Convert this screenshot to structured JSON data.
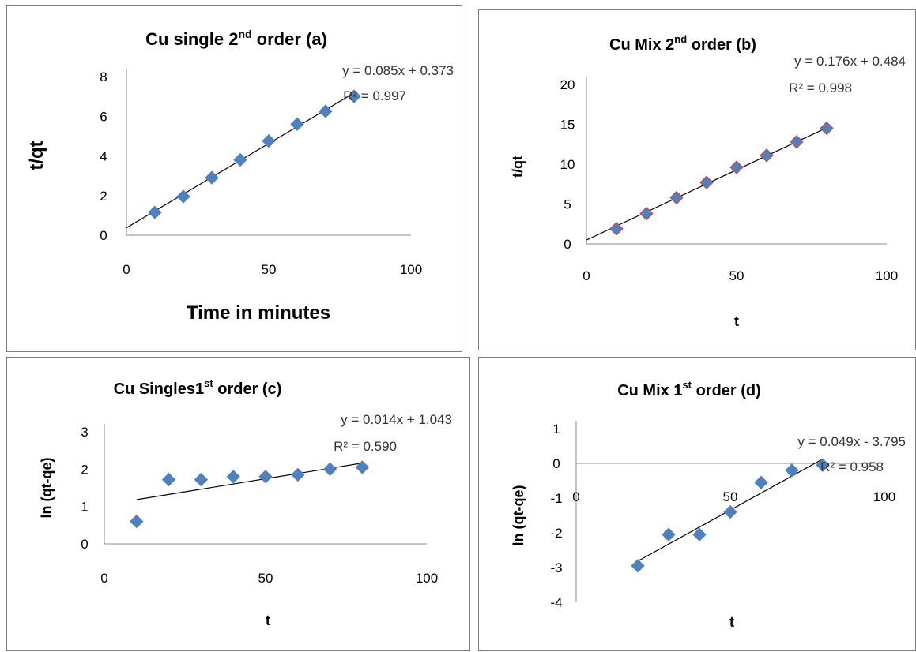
{
  "chart_data": [
    {
      "id": "a",
      "type": "scatter",
      "title": "Cu  single 2nd order (a)",
      "title_main": "Cu  single 2",
      "title_sup": "nd",
      "title_rest": " order (a)",
      "xlabel": "Time in minutes",
      "ylabel": "t/qt",
      "xlim": [
        0,
        100
      ],
      "ylim": [
        0,
        8
      ],
      "xticks": [
        0,
        50,
        100
      ],
      "yticks": [
        0,
        2,
        4,
        6,
        8
      ],
      "x": [
        10,
        20,
        30,
        40,
        50,
        60,
        70,
        80
      ],
      "y": [
        1.15,
        1.95,
        2.9,
        3.8,
        4.75,
        5.6,
        6.25,
        7.0
      ],
      "trendline": {
        "slope": 0.085,
        "intercept": 0.373,
        "x_range": [
          0,
          80
        ]
      },
      "equation": "y = 0.085x + 0.373",
      "r2": "R² = 0.997",
      "marker_color": "#4f81bd",
      "marker_edge": "#4f81bd",
      "grid": false
    },
    {
      "id": "b",
      "type": "scatter",
      "title": "Cu Mix 2nd order (b)",
      "title_main": "Cu Mix 2",
      "title_sup": "nd",
      "title_rest": " order (b)",
      "xlabel": "t",
      "ylabel": "t/qt",
      "xlim": [
        0,
        100
      ],
      "ylim": [
        0,
        20
      ],
      "xticks": [
        0,
        50,
        100
      ],
      "yticks": [
        0,
        5,
        10,
        15,
        20
      ],
      "x": [
        10,
        20,
        30,
        40,
        50,
        60,
        70,
        80
      ],
      "y": [
        1.9,
        3.8,
        5.8,
        7.7,
        9.6,
        11.1,
        12.8,
        14.5
      ],
      "trendline": {
        "slope": 0.176,
        "intercept": 0.484,
        "x_range": [
          0,
          80
        ]
      },
      "equation": "y = 0.176x + 0.484",
      "r2": "R² = 0.998",
      "marker_color": "#4f81bd",
      "marker_edge": "#d93b3b",
      "grid": false
    },
    {
      "id": "c",
      "type": "scatter",
      "title": "Cu  Singles1st order (c)",
      "title_main": "Cu  Singles1",
      "title_sup": "st",
      "title_rest": " order (c)",
      "xlabel": "t",
      "ylabel": "ln (qt-qe)",
      "xlim": [
        0,
        100
      ],
      "ylim": [
        0,
        3
      ],
      "xticks": [
        0,
        50,
        100
      ],
      "yticks": [
        0,
        1,
        2,
        3
      ],
      "x": [
        10,
        20,
        30,
        40,
        50,
        60,
        70,
        80
      ],
      "y": [
        0.6,
        1.72,
        1.72,
        1.8,
        1.8,
        1.85,
        2.0,
        2.05
      ],
      "trendline": {
        "slope": 0.014,
        "intercept": 1.043,
        "x_range": [
          10,
          80
        ]
      },
      "equation": "y = 0.014x + 1.043",
      "r2": "R² = 0.590",
      "marker_color": "#4f81bd",
      "marker_edge": "#4f81bd",
      "grid": false
    },
    {
      "id": "d",
      "type": "scatter",
      "title": "Cu Mix 1st order (d)",
      "title_main": "Cu Mix 1",
      "title_sup": "st",
      "title_rest": " order (d)",
      "xlabel": "t",
      "ylabel": "ln (qt-qe)",
      "xlim": [
        0,
        100
      ],
      "ylim": [
        -4,
        1
      ],
      "xticks": [
        0,
        50,
        100
      ],
      "yticks": [
        1,
        0,
        -1,
        -2,
        -3,
        -4
      ],
      "x": [
        20,
        30,
        40,
        50,
        60,
        70,
        80
      ],
      "y": [
        -2.95,
        -2.05,
        -2.05,
        -1.4,
        -0.55,
        -0.2,
        -0.05
      ],
      "trendline": {
        "slope": 0.049,
        "intercept": -3.795,
        "x_range": [
          20,
          80
        ]
      },
      "equation": "y = 0.049x - 3.795",
      "r2": "R² = 0.958",
      "marker_color": "#4f81bd",
      "marker_edge": "#4f81bd",
      "grid": false
    }
  ]
}
